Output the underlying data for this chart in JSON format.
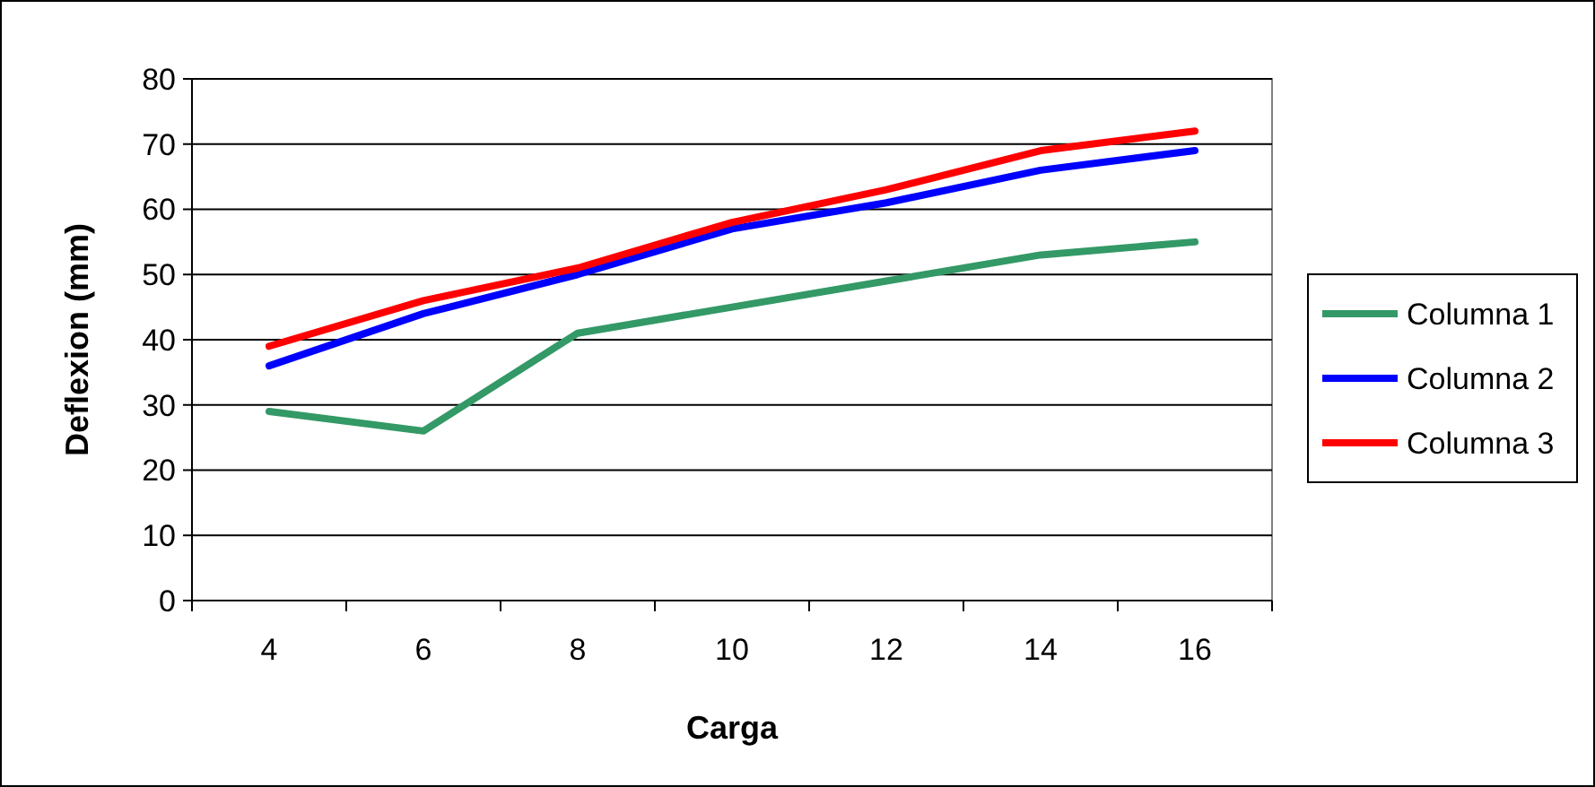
{
  "chart_data": {
    "type": "line",
    "xlabel": "Carga",
    "ylabel": "Deflexion (mm)",
    "categories": [
      "4",
      "6",
      "8",
      "10",
      "12",
      "14",
      "16"
    ],
    "series": [
      {
        "name": "Columna 1",
        "color": "#339966",
        "values": [
          29,
          26,
          41,
          45,
          49,
          53,
          55
        ]
      },
      {
        "name": "Columna 2",
        "color": "#0000ff",
        "values": [
          36,
          44,
          50,
          57,
          61,
          66,
          69
        ]
      },
      {
        "name": "Columna 3",
        "color": "#ff0000",
        "values": [
          39,
          46,
          51,
          58,
          63,
          69,
          72
        ]
      }
    ],
    "ylim": [
      0,
      80
    ],
    "yticks": [
      0,
      10,
      20,
      30,
      40,
      50,
      60,
      70,
      80
    ],
    "grid": "y",
    "legend": "right",
    "marker": "none",
    "line_style": "solid"
  }
}
